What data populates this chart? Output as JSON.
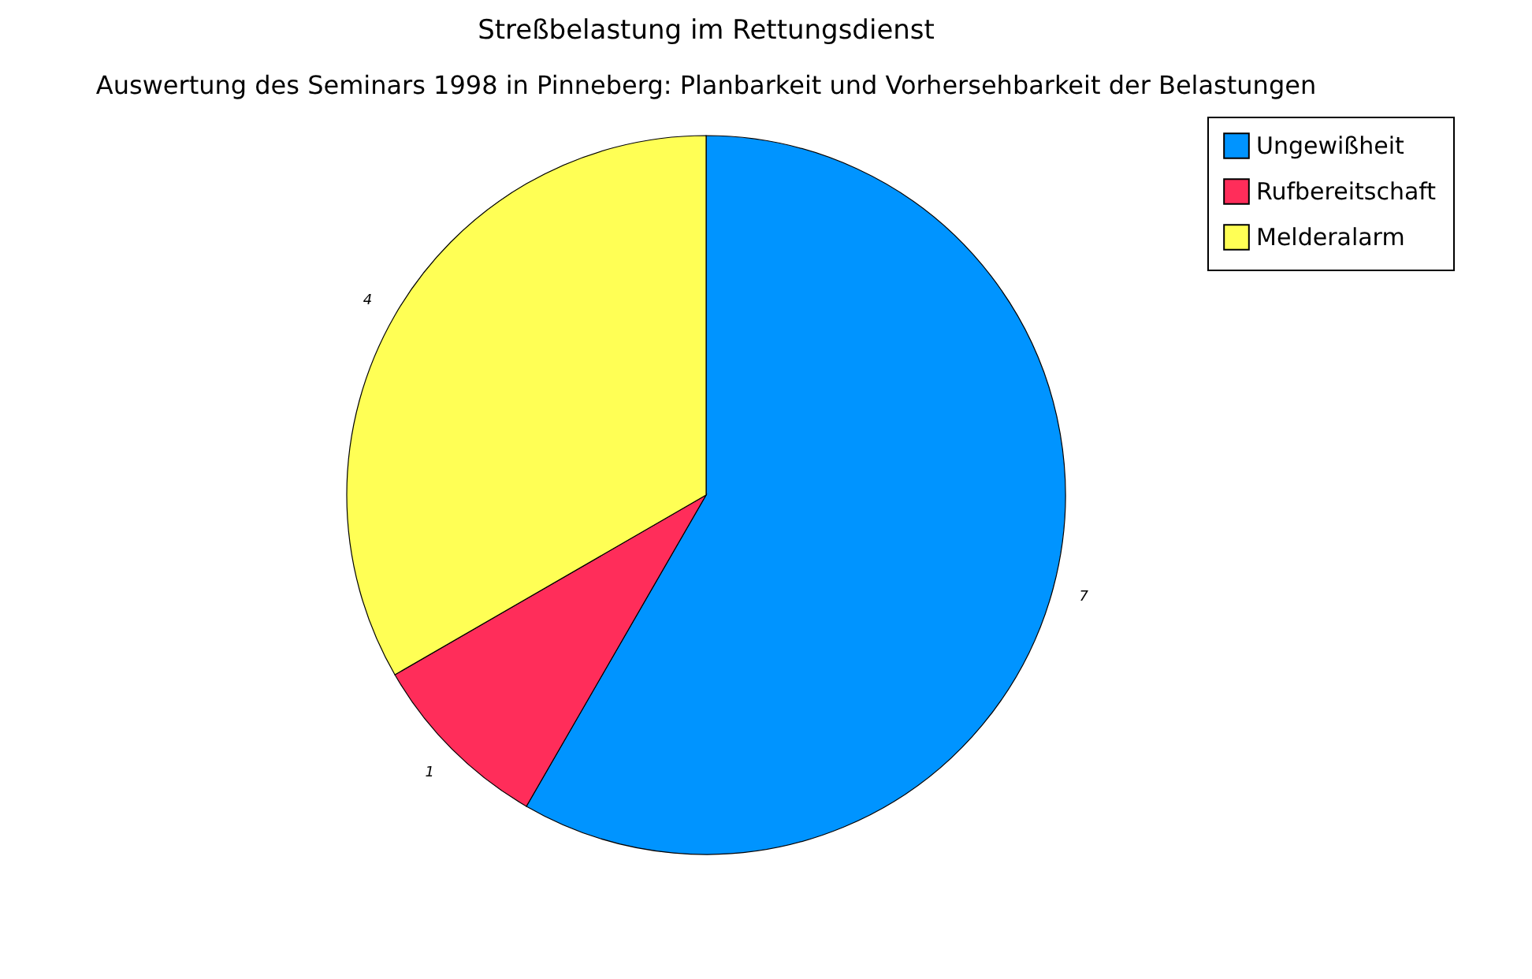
{
  "chart_data": {
    "type": "pie",
    "title": "Streßbelastung im Rettungsdienst",
    "subtitle": "Auswertung des Seminars 1998 in Pinneberg: Planbarkeit und Vorhersehbarkeit der Belastungen",
    "categories": [
      "Ungewißheit",
      "Rufbereitschaft",
      "Melderalarm"
    ],
    "values": [
      7,
      1,
      4
    ],
    "colors": [
      "#0094ff",
      "#ff2d5a",
      "#ffff55"
    ],
    "data_labels": true,
    "legend": "right"
  }
}
